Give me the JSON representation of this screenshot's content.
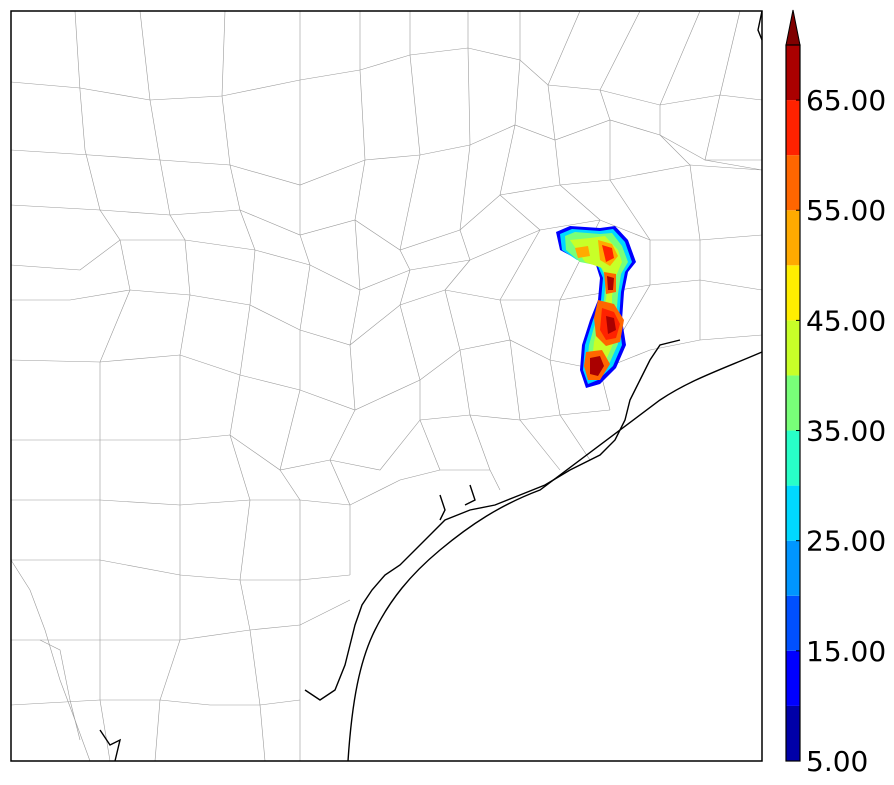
{
  "map": {
    "type": "filled-contour-radar-reflectivity",
    "region": "Southeast Texas coast",
    "legend_placement": "right"
  },
  "colorbar": {
    "orientation": "vertical",
    "min": 5,
    "max": 70,
    "extend": "max",
    "levels": [
      5,
      10,
      15,
      20,
      25,
      30,
      35,
      40,
      45,
      50,
      55,
      60,
      65,
      70
    ],
    "tick_values": [
      5,
      15,
      25,
      35,
      45,
      55,
      65
    ],
    "tick_labels": [
      "5.00",
      "15.00",
      "25.00",
      "35.00",
      "45.00",
      "55.00",
      "65.00"
    ],
    "colors": [
      "#0000a8",
      "#0000ff",
      "#0050ff",
      "#0096ff",
      "#00d8ff",
      "#28ffc8",
      "#78ff78",
      "#c8ff28",
      "#ffee00",
      "#ffaa00",
      "#ff6600",
      "#ff2200",
      "#aa0000"
    ],
    "extend_color": "#800000"
  }
}
